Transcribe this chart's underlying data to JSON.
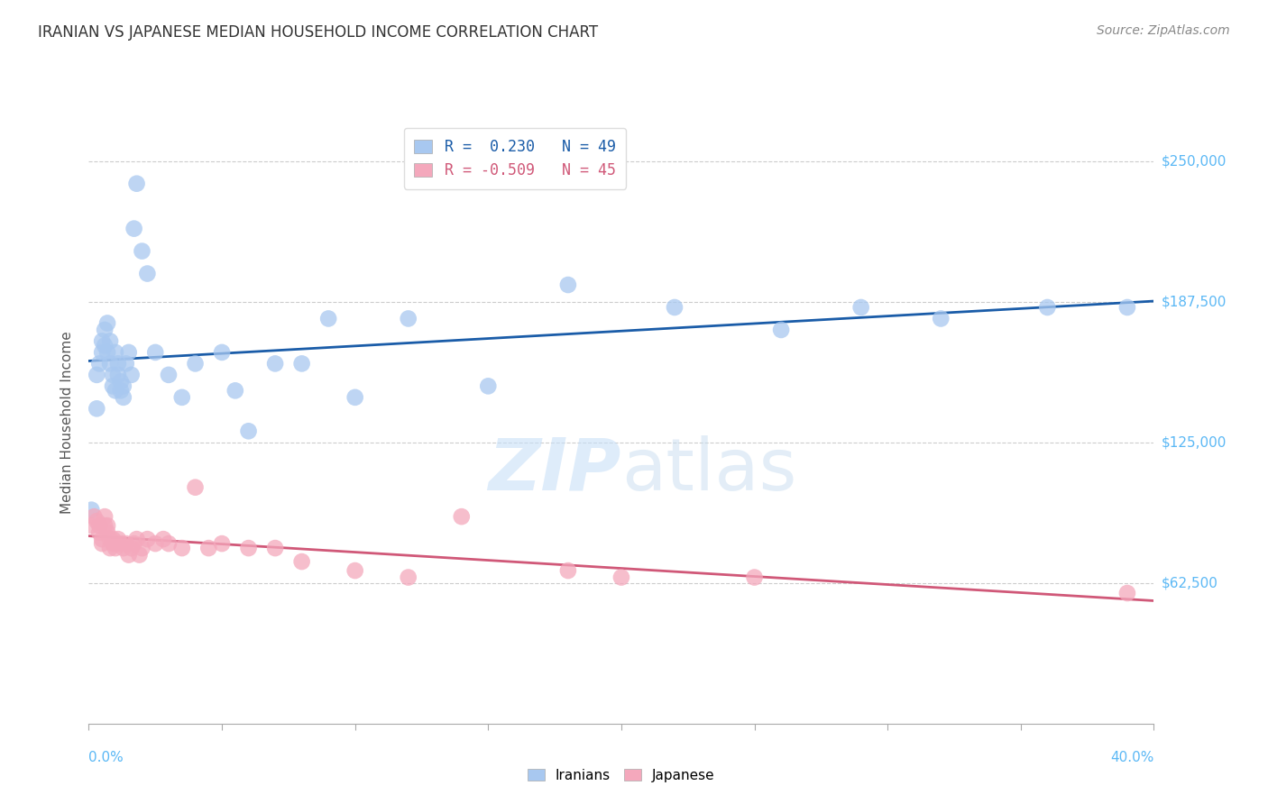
{
  "title": "IRANIAN VS JAPANESE MEDIAN HOUSEHOLD INCOME CORRELATION CHART",
  "source": "Source: ZipAtlas.com",
  "ylabel": "Median Household Income",
  "ytick_labels": [
    "$62,500",
    "$125,000",
    "$187,500",
    "$250,000"
  ],
  "ytick_values": [
    62500,
    125000,
    187500,
    250000
  ],
  "ymin": 0,
  "ymax": 268000,
  "xmin": 0.0,
  "xmax": 0.4,
  "watermark_zip": "ZIP",
  "watermark_atlas": "atlas",
  "legend_iranian": "R =  0.230   N = 49",
  "legend_japanese": "R = -0.509   N = 45",
  "iranian_color": "#A8C8F0",
  "japanese_color": "#F4A8BC",
  "iranian_line_color": "#1A5CA8",
  "japanese_line_color": "#D05878",
  "background_color": "#FFFFFF",
  "grid_color": "#CCCCCC",
  "ytick_color": "#5BB8F5",
  "title_color": "#333333",
  "source_color": "#888888",
  "xtick_color": "#5BB8F5",
  "iranians_x": [
    0.001,
    0.003,
    0.003,
    0.004,
    0.005,
    0.005,
    0.006,
    0.006,
    0.007,
    0.007,
    0.008,
    0.008,
    0.009,
    0.009,
    0.01,
    0.01,
    0.011,
    0.011,
    0.012,
    0.012,
    0.013,
    0.013,
    0.014,
    0.015,
    0.016,
    0.017,
    0.018,
    0.02,
    0.022,
    0.025,
    0.03,
    0.035,
    0.04,
    0.05,
    0.055,
    0.06,
    0.07,
    0.08,
    0.09,
    0.1,
    0.12,
    0.15,
    0.18,
    0.22,
    0.26,
    0.29,
    0.32,
    0.36,
    0.39
  ],
  "iranians_y": [
    95000,
    140000,
    155000,
    160000,
    170000,
    165000,
    175000,
    168000,
    165000,
    178000,
    170000,
    160000,
    155000,
    150000,
    148000,
    165000,
    160000,
    155000,
    152000,
    148000,
    150000,
    145000,
    160000,
    165000,
    155000,
    220000,
    240000,
    210000,
    200000,
    165000,
    155000,
    145000,
    160000,
    165000,
    148000,
    130000,
    160000,
    160000,
    180000,
    145000,
    180000,
    150000,
    195000,
    185000,
    175000,
    185000,
    180000,
    185000,
    185000
  ],
  "japanese_x": [
    0.001,
    0.002,
    0.003,
    0.004,
    0.004,
    0.005,
    0.005,
    0.006,
    0.006,
    0.007,
    0.007,
    0.008,
    0.008,
    0.009,
    0.009,
    0.01,
    0.01,
    0.011,
    0.012,
    0.013,
    0.014,
    0.015,
    0.016,
    0.017,
    0.018,
    0.019,
    0.02,
    0.022,
    0.025,
    0.028,
    0.03,
    0.035,
    0.04,
    0.045,
    0.05,
    0.06,
    0.07,
    0.08,
    0.1,
    0.12,
    0.14,
    0.18,
    0.2,
    0.25,
    0.39
  ],
  "japanese_y": [
    88000,
    92000,
    90000,
    88000,
    85000,
    82000,
    80000,
    88000,
    92000,
    88000,
    85000,
    82000,
    78000,
    80000,
    82000,
    80000,
    78000,
    82000,
    80000,
    78000,
    80000,
    75000,
    78000,
    80000,
    82000,
    75000,
    78000,
    82000,
    80000,
    82000,
    80000,
    78000,
    105000,
    78000,
    80000,
    78000,
    78000,
    72000,
    68000,
    65000,
    92000,
    68000,
    65000,
    65000,
    58000
  ]
}
